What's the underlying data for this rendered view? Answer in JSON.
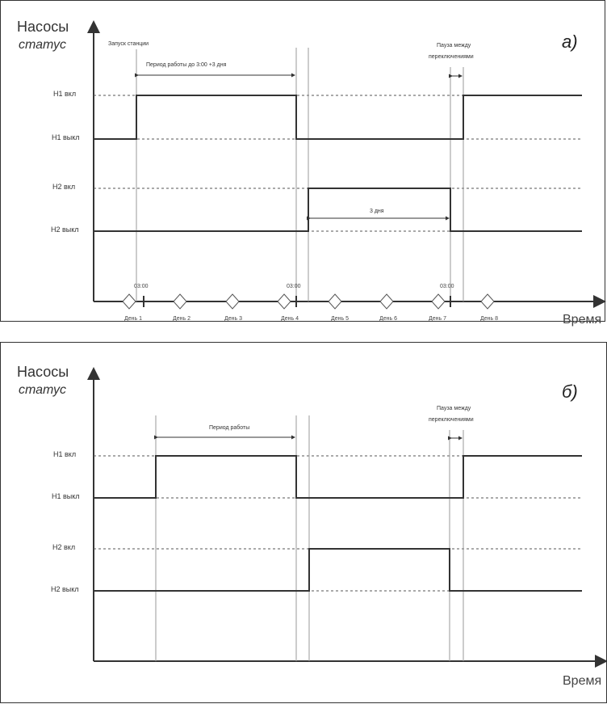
{
  "colors": {
    "line": "#3a3a3a",
    "dash": "#555555",
    "guide": "#8a8a8a"
  },
  "panel_a": {
    "letter": "а)",
    "y_title": "Насосы",
    "y_subtitle": "статус",
    "x_title": "Время",
    "levels": [
      "Н1 вкл",
      "Н1 выкл",
      "Н2 вкл",
      "Н2 выкл"
    ],
    "annotations": {
      "start": "Запуск станции",
      "period": "Период работы до 3:00 +3 дня",
      "pause": [
        "Пауза между",
        "переключениями"
      ],
      "three_days": "3 дня"
    },
    "times": [
      "03:00",
      "03:00",
      "03:00"
    ],
    "days": [
      "День 1",
      "День 2",
      "День 3",
      "День 4",
      "День 5",
      "День 6",
      "День 7",
      "День 8"
    ]
  },
  "panel_b": {
    "letter": "б)",
    "y_title": "Насосы",
    "y_subtitle": "статус",
    "x_title": "Время",
    "levels": [
      "Н1 вкл",
      "Н1 выкл",
      "Н2 вкл",
      "Н2 выкл"
    ],
    "annotations": {
      "period": "Период работы",
      "pause": [
        "Пауза между",
        "переключениями"
      ]
    }
  }
}
